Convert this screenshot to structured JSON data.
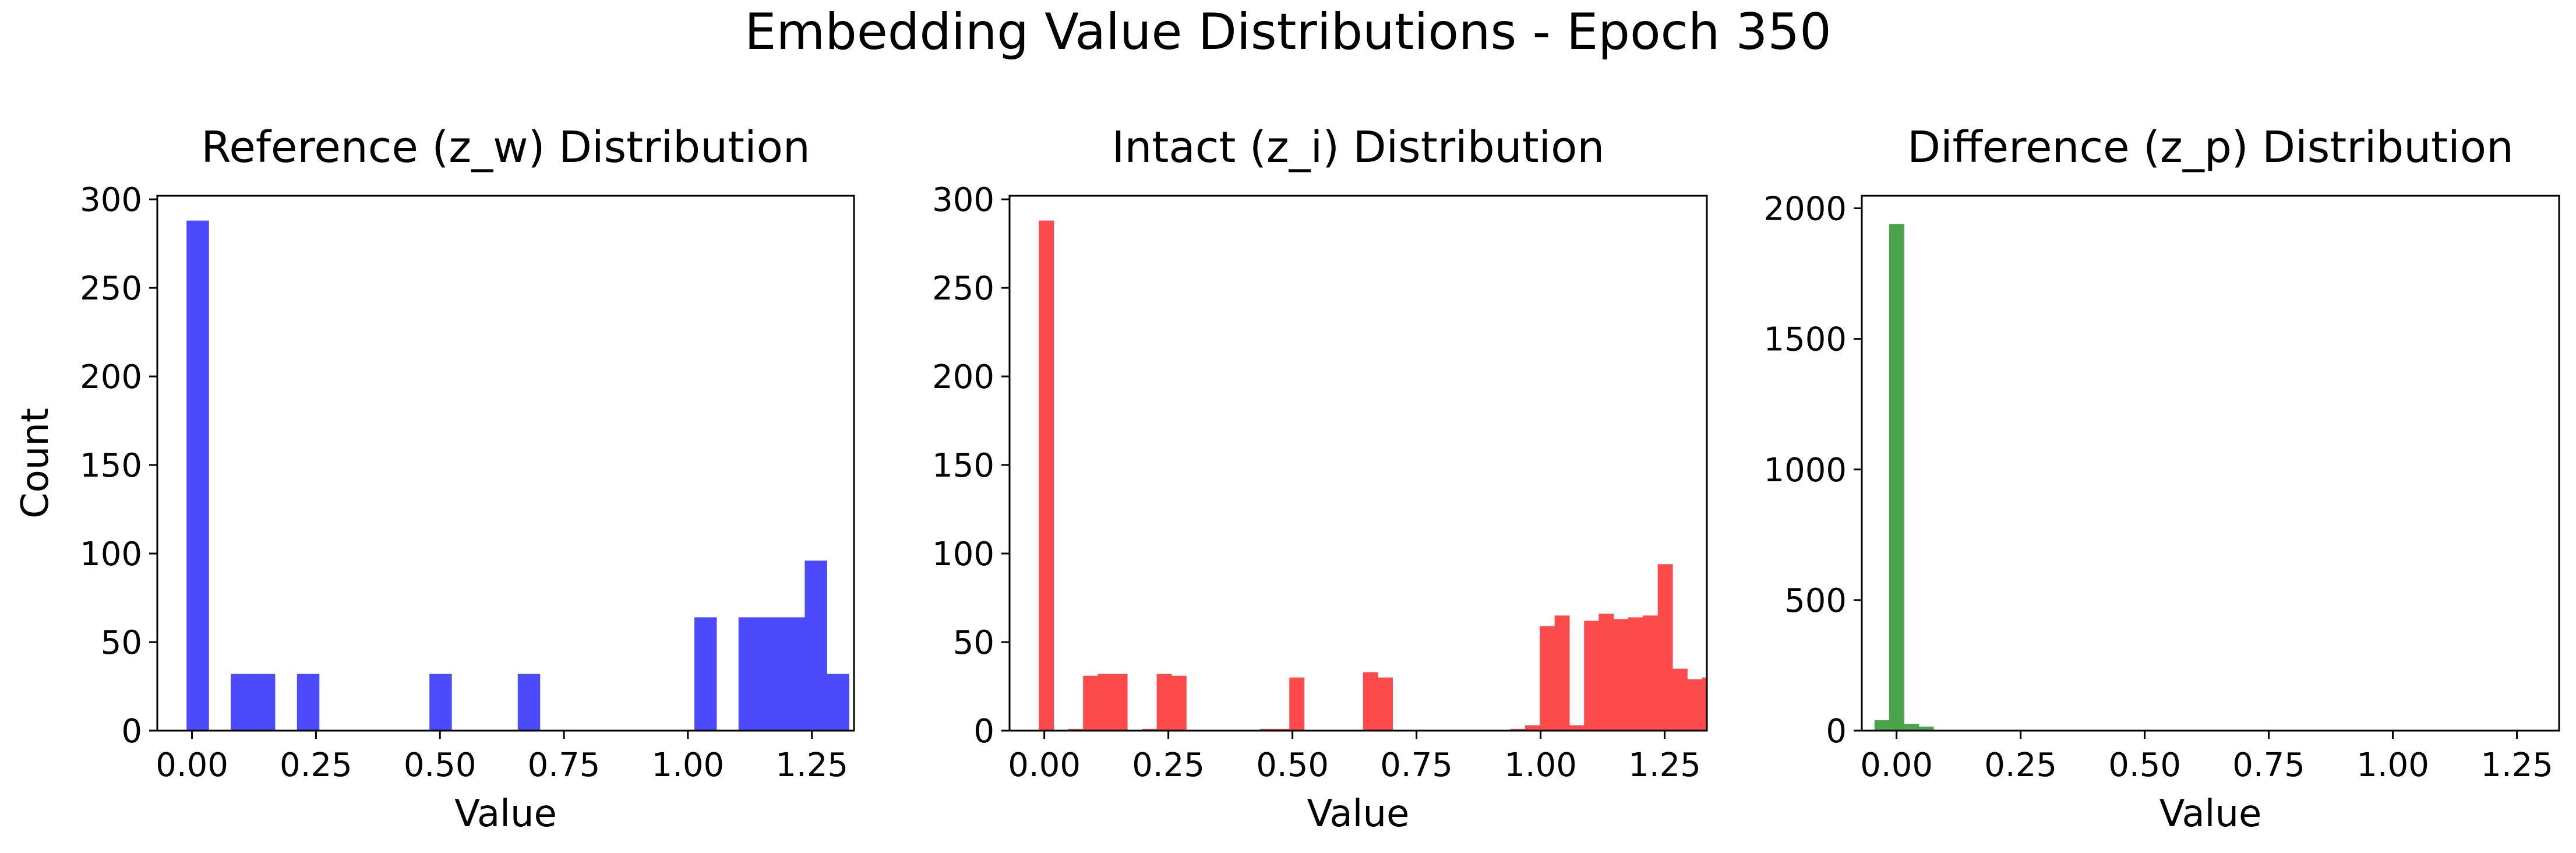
{
  "figure": {
    "suptitle": "Embedding Value Distributions - Epoch 350"
  },
  "chart_data": [
    {
      "type": "bar",
      "title": "Reference (z_w) Distribution",
      "xlabel": "Value",
      "ylabel": "Count",
      "xlim": [
        -0.07,
        1.335
      ],
      "ylim": [
        0,
        302
      ],
      "xticks": [
        "0.00",
        "0.25",
        "0.50",
        "0.75",
        "1.00",
        "1.25"
      ],
      "xtick_values": [
        0,
        0.25,
        0.5,
        0.75,
        1.0,
        1.25
      ],
      "yticks": [
        "0",
        "50",
        "100",
        "150",
        "200",
        "250",
        "300"
      ],
      "ytick_values": [
        0,
        50,
        100,
        150,
        200,
        250,
        300
      ],
      "color": "#4b4bfb",
      "bin_width": 0.0445,
      "bins": [
        {
          "x0": -0.011,
          "value": 288
        },
        {
          "x0": 0.0781,
          "value": 32
        },
        {
          "x0": 0.1226,
          "value": 32
        },
        {
          "x0": 0.2117,
          "value": 32
        },
        {
          "x0": 0.4788,
          "value": 32
        },
        {
          "x0": 0.6569,
          "value": 32
        },
        {
          "x0": 1.0131,
          "value": 64
        },
        {
          "x0": 1.1021,
          "value": 64
        },
        {
          "x0": 1.1466,
          "value": 64
        },
        {
          "x0": 1.1912,
          "value": 64
        },
        {
          "x0": 1.2357,
          "value": 96
        },
        {
          "x0": 1.2802,
          "value": 32
        }
      ]
    },
    {
      "type": "bar",
      "title": "Intact (z_i) Distribution",
      "xlabel": "Value",
      "ylabel": "",
      "xlim": [
        -0.07,
        1.335
      ],
      "ylim": [
        0,
        302
      ],
      "xticks": [
        "0.00",
        "0.25",
        "0.50",
        "0.75",
        "1.00",
        "1.25"
      ],
      "xtick_values": [
        0,
        0.25,
        0.5,
        0.75,
        1.0,
        1.25
      ],
      "yticks": [
        "0",
        "50",
        "100",
        "150",
        "200",
        "250",
        "300"
      ],
      "ytick_values": [
        0,
        50,
        100,
        150,
        200,
        250,
        300
      ],
      "color": "#fd4b4b",
      "bin_width": 0.0297,
      "bins": [
        {
          "x0": -0.011,
          "value": 288
        },
        {
          "x0": 0.0484,
          "value": 1
        },
        {
          "x0": 0.0781,
          "value": 31
        },
        {
          "x0": 0.1078,
          "value": 32
        },
        {
          "x0": 0.1374,
          "value": 32
        },
        {
          "x0": 0.1969,
          "value": 1
        },
        {
          "x0": 0.2265,
          "value": 32
        },
        {
          "x0": 0.2562,
          "value": 31
        },
        {
          "x0": 0.4344,
          "value": 1
        },
        {
          "x0": 0.4641,
          "value": 1
        },
        {
          "x0": 0.4937,
          "value": 30
        },
        {
          "x0": 0.6422,
          "value": 33
        },
        {
          "x0": 0.6719,
          "value": 30
        },
        {
          "x0": 0.9391,
          "value": 1
        },
        {
          "x0": 0.9688,
          "value": 3
        },
        {
          "x0": 0.9985,
          "value": 59
        },
        {
          "x0": 1.0282,
          "value": 65
        },
        {
          "x0": 1.0579,
          "value": 3
        },
        {
          "x0": 1.0876,
          "value": 62
        },
        {
          "x0": 1.1172,
          "value": 66
        },
        {
          "x0": 1.1469,
          "value": 63
        },
        {
          "x0": 1.1766,
          "value": 64
        },
        {
          "x0": 1.2063,
          "value": 65
        },
        {
          "x0": 1.236,
          "value": 94
        },
        {
          "x0": 1.2657,
          "value": 35
        },
        {
          "x0": 1.2954,
          "value": 29
        },
        {
          "x0": 1.3251,
          "value": 30
        }
      ]
    },
    {
      "type": "bar",
      "title": "Difference (z_p) Distribution",
      "xlabel": "Value",
      "ylabel": "",
      "xlim": [
        -0.07,
        1.335
      ],
      "ylim": [
        0,
        2048
      ],
      "xticks": [
        "0.00",
        "0.25",
        "0.50",
        "0.75",
        "1.00",
        "1.25"
      ],
      "xtick_values": [
        0,
        0.25,
        0.5,
        0.75,
        1.0,
        1.25
      ],
      "yticks": [
        "0",
        "500",
        "1000",
        "1500",
        "2000"
      ],
      "ytick_values": [
        0,
        500,
        1000,
        1500,
        2000
      ],
      "color": "#4ba34b",
      "bin_width": 0.0297,
      "bins": [
        {
          "x0": -0.0445,
          "value": 40
        },
        {
          "x0": -0.0148,
          "value": 1940
        },
        {
          "x0": 0.0149,
          "value": 25
        },
        {
          "x0": 0.0446,
          "value": 15
        },
        {
          "x0": 0.0743,
          "value": 3
        },
        {
          "x0": 0.104,
          "value": 1
        }
      ]
    }
  ]
}
